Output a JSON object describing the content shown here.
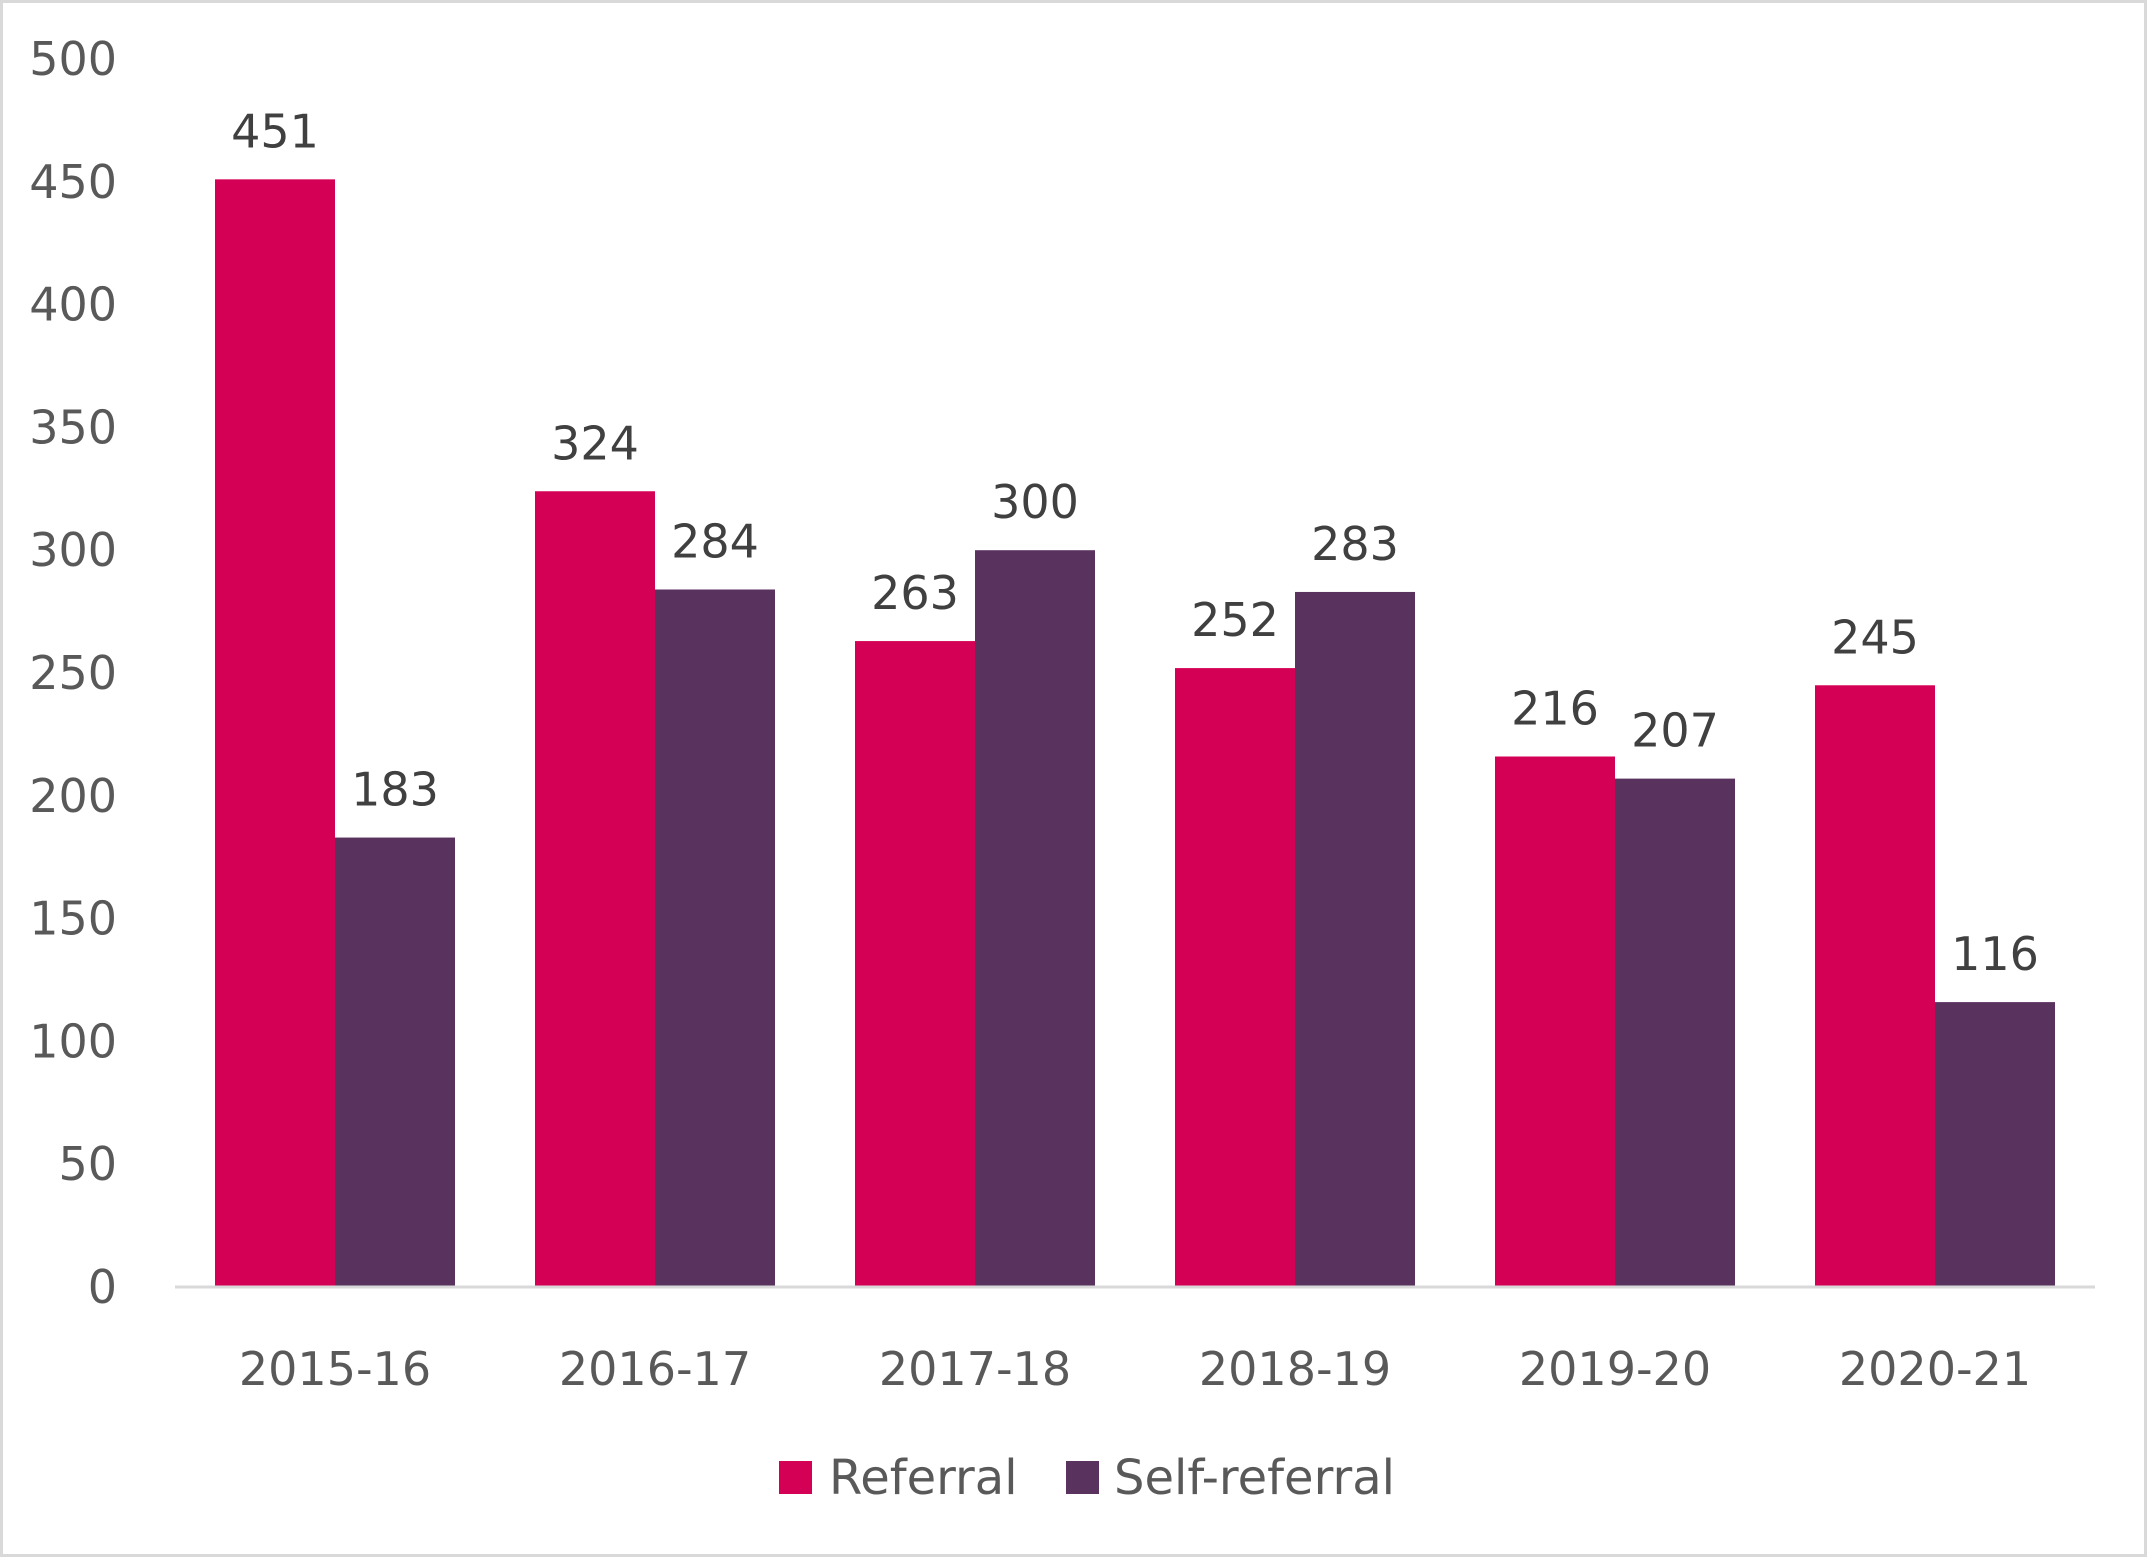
{
  "chart_data": {
    "type": "bar",
    "title": "",
    "xlabel": "",
    "ylabel": "",
    "categories": [
      "2015-16",
      "2016-17",
      "2017-18",
      "2018-19",
      "2019-20",
      "2020-21"
    ],
    "series": [
      {
        "name": "Referral",
        "color": "#D40055",
        "values": [
          451,
          324,
          263,
          252,
          216,
          245
        ]
      },
      {
        "name": "Self-referral",
        "color": "#5A325E",
        "values": [
          183,
          284,
          300,
          283,
          207,
          116
        ]
      }
    ],
    "ylim": [
      0,
      500
    ],
    "yticks": [
      0,
      50,
      100,
      150,
      200,
      250,
      300,
      350,
      400,
      450,
      500
    ],
    "grid": false,
    "data_labels": true,
    "legend": {
      "position": "bottom",
      "entries": [
        "Referral",
        "Self-referral"
      ]
    }
  }
}
